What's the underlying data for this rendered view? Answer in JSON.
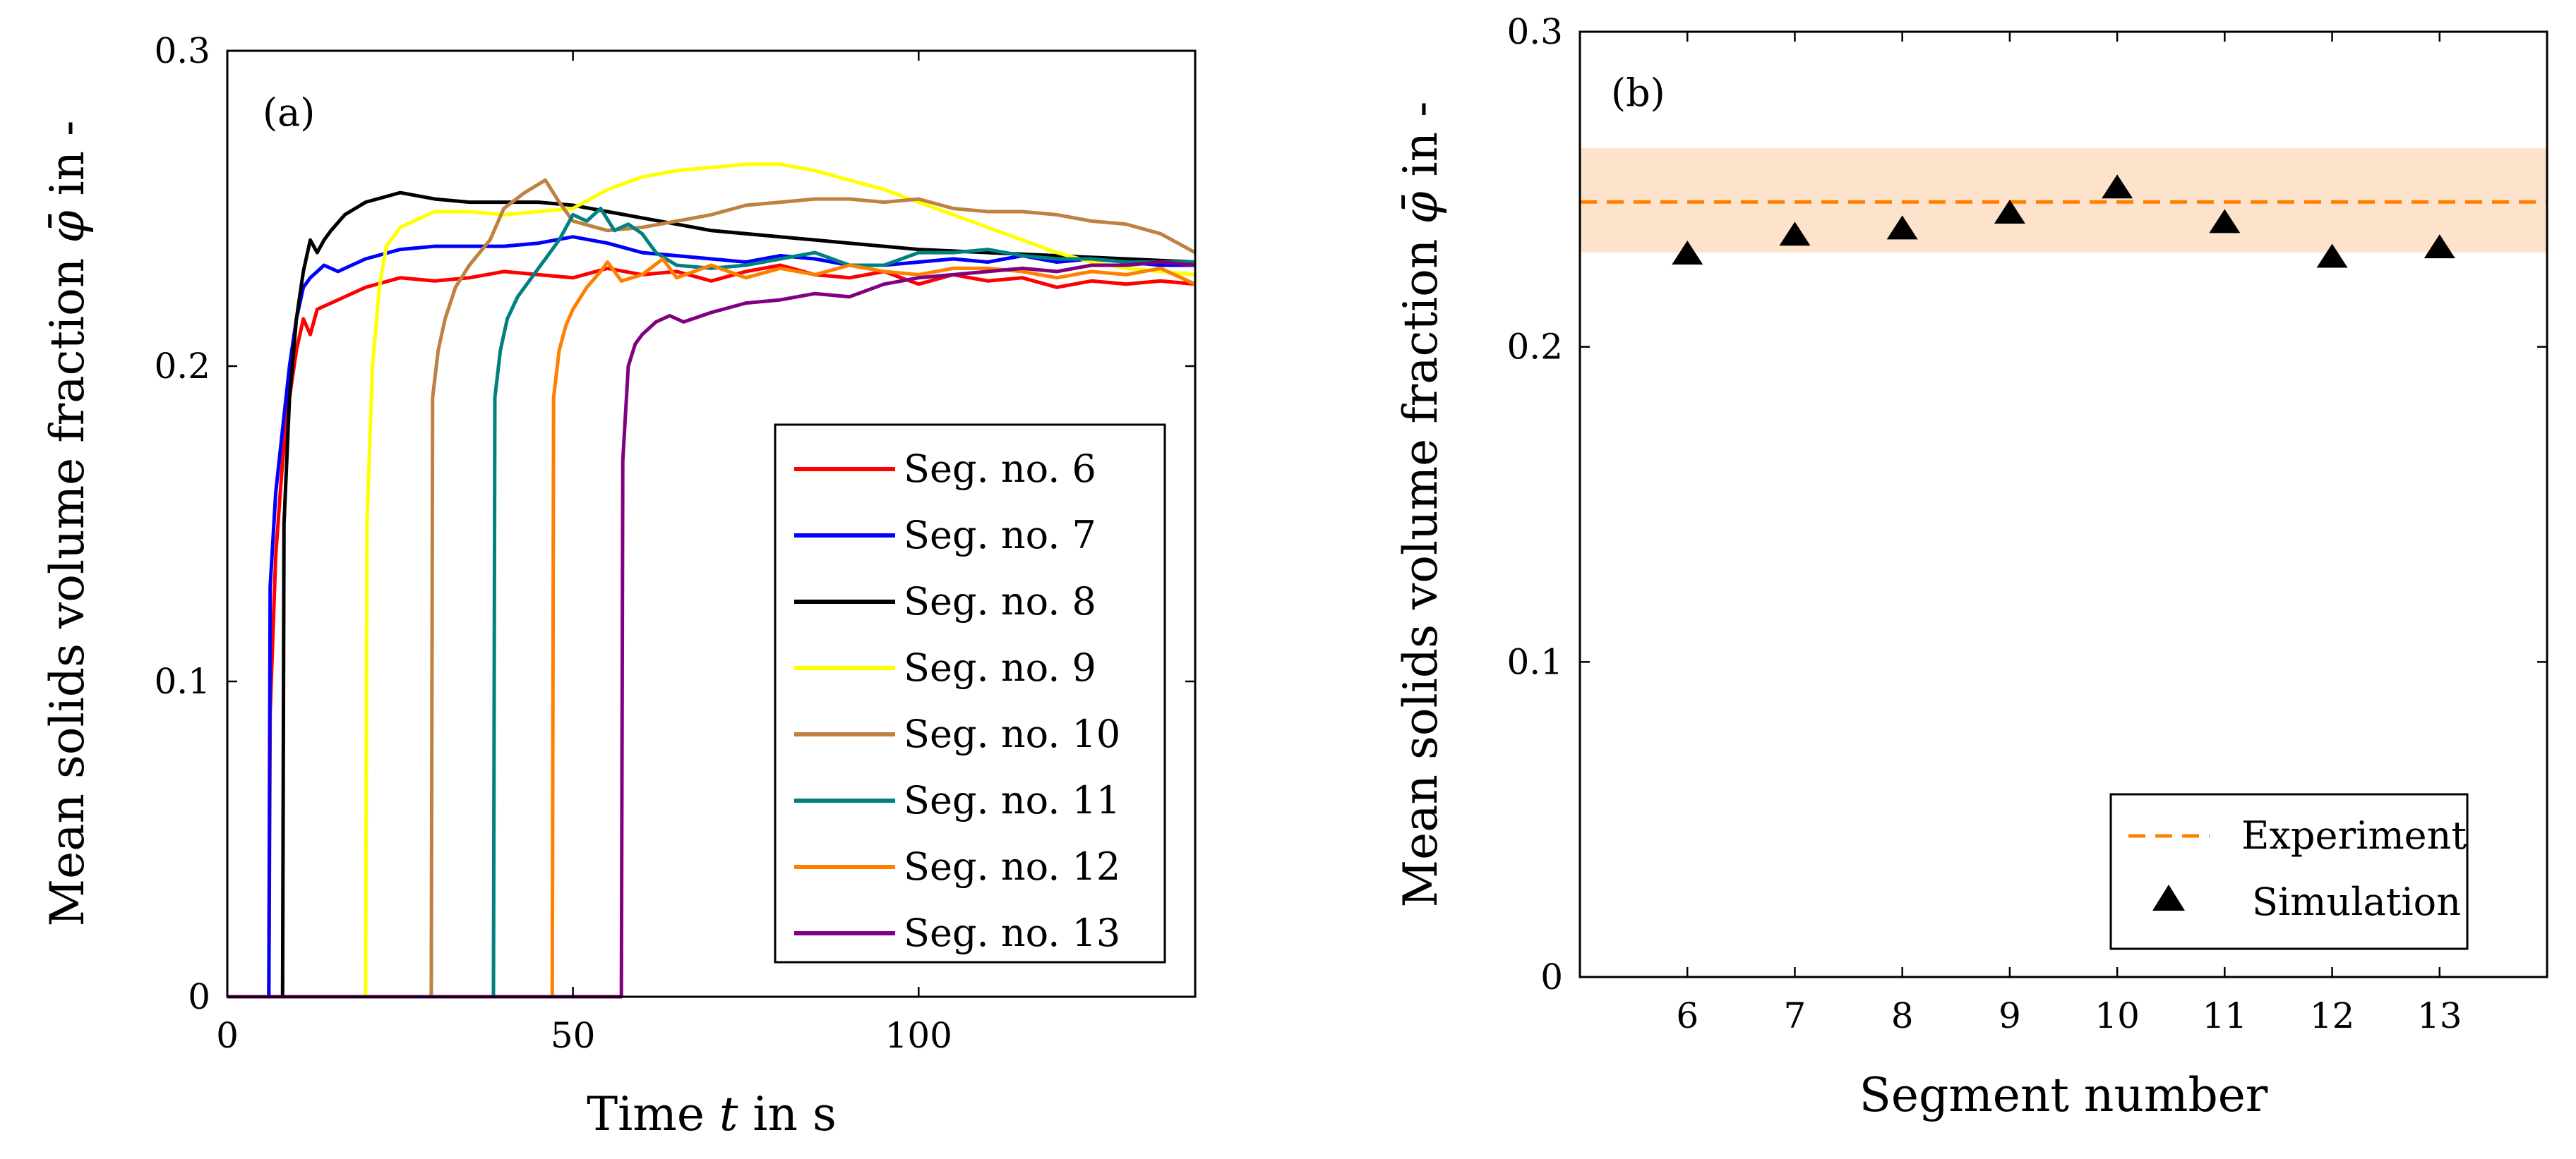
{
  "chart_data": [
    {
      "type": "line",
      "panel_label": "(a)",
      "xlabel": "Time t in s",
      "xlabel_parts": [
        "Time ",
        "t",
        " in s"
      ],
      "ylabel": "Mean solids volume fraction φ̄ in -",
      "ylabel_parts": [
        "Mean solids volume fraction ",
        "φ̄",
        " in -"
      ],
      "xlim": [
        0,
        140
      ],
      "ylim": [
        0,
        0.3
      ],
      "xticks": [
        0,
        50,
        100
      ],
      "xtick_labels": [
        "0",
        "50",
        "100"
      ],
      "yticks": [
        0,
        0.1,
        0.2,
        0.3
      ],
      "ytick_labels": [
        "0",
        "0.1",
        "0.2",
        "0.3"
      ],
      "grid": false,
      "legend_position": "bottom-right",
      "series": [
        {
          "name": "Seg. no. 6",
          "color": "#ff0000",
          "x": [
            0,
            6,
            6.2,
            7,
            8,
            9,
            10,
            11,
            12,
            13,
            15,
            20,
            25,
            30,
            35,
            40,
            45,
            50,
            55,
            60,
            65,
            70,
            75,
            80,
            85,
            90,
            95,
            100,
            105,
            110,
            115,
            120,
            125,
            130,
            135,
            140
          ],
          "y": [
            0,
            0,
            0.09,
            0.14,
            0.17,
            0.19,
            0.205,
            0.215,
            0.21,
            0.218,
            0.22,
            0.225,
            0.228,
            0.227,
            0.228,
            0.23,
            0.229,
            0.228,
            0.231,
            0.229,
            0.23,
            0.227,
            0.23,
            0.232,
            0.229,
            0.228,
            0.23,
            0.226,
            0.229,
            0.227,
            0.228,
            0.225,
            0.227,
            0.226,
            0.227,
            0.226
          ]
        },
        {
          "name": "Seg. no. 7",
          "color": "#0000ff",
          "x": [
            0,
            6,
            6.2,
            7,
            8,
            9,
            10,
            11,
            12,
            14,
            16,
            20,
            25,
            30,
            35,
            40,
            45,
            50,
            55,
            60,
            65,
            70,
            75,
            80,
            85,
            90,
            95,
            100,
            105,
            110,
            115,
            120,
            125,
            130,
            135,
            140
          ],
          "y": [
            0,
            0,
            0.13,
            0.16,
            0.18,
            0.2,
            0.215,
            0.225,
            0.228,
            0.232,
            0.23,
            0.234,
            0.237,
            0.238,
            0.238,
            0.238,
            0.239,
            0.241,
            0.239,
            0.236,
            0.235,
            0.234,
            0.233,
            0.235,
            0.234,
            0.232,
            0.232,
            0.233,
            0.234,
            0.233,
            0.235,
            0.233,
            0.234,
            0.233,
            0.232,
            0.232
          ]
        },
        {
          "name": "Seg. no. 8",
          "color": "#000000",
          "x": [
            0,
            8,
            8.2,
            9,
            10,
            11,
            12,
            13,
            14,
            15,
            17,
            20,
            25,
            30,
            35,
            40,
            45,
            50,
            55,
            60,
            65,
            70,
            80,
            90,
            100,
            110,
            120,
            130,
            140
          ],
          "y": [
            0,
            0,
            0.15,
            0.19,
            0.215,
            0.23,
            0.24,
            0.236,
            0.24,
            0.243,
            0.248,
            0.252,
            0.255,
            0.253,
            0.252,
            0.252,
            0.252,
            0.251,
            0.249,
            0.247,
            0.245,
            0.243,
            0.241,
            0.239,
            0.237,
            0.236,
            0.235,
            0.234,
            0.233
          ]
        },
        {
          "name": "Seg. no. 9",
          "color": "#ffff00",
          "x": [
            0,
            20,
            20.2,
            21,
            22,
            23,
            25,
            27,
            30,
            35,
            40,
            45,
            50,
            55,
            60,
            65,
            70,
            75,
            80,
            85,
            90,
            95,
            100,
            105,
            110,
            115,
            120,
            125,
            130,
            135,
            140
          ],
          "y": [
            0,
            0,
            0.15,
            0.2,
            0.225,
            0.238,
            0.244,
            0.246,
            0.249,
            0.249,
            0.248,
            0.249,
            0.25,
            0.256,
            0.26,
            0.262,
            0.263,
            0.264,
            0.264,
            0.262,
            0.259,
            0.256,
            0.252,
            0.248,
            0.244,
            0.24,
            0.236,
            0.233,
            0.231,
            0.23,
            0.229
          ]
        },
        {
          "name": "Seg. no. 10",
          "color": "#bf8040",
          "x": [
            0,
            29.5,
            29.7,
            30.5,
            31.5,
            33,
            35,
            38,
            40,
            43,
            46,
            48,
            50,
            55,
            60,
            65,
            70,
            75,
            80,
            85,
            90,
            95,
            100,
            105,
            110,
            115,
            120,
            125,
            130,
            135,
            140
          ],
          "y": [
            0,
            0,
            0.19,
            0.205,
            0.215,
            0.225,
            0.232,
            0.24,
            0.25,
            0.255,
            0.259,
            0.252,
            0.246,
            0.243,
            0.244,
            0.246,
            0.248,
            0.251,
            0.252,
            0.253,
            0.253,
            0.252,
            0.253,
            0.25,
            0.249,
            0.249,
            0.248,
            0.246,
            0.245,
            0.242,
            0.236
          ]
        },
        {
          "name": "Seg. no. 11",
          "color": "#008080",
          "x": [
            0,
            38.5,
            38.7,
            39.5,
            40.5,
            42,
            44,
            46,
            48,
            50,
            52,
            54,
            56,
            58,
            60,
            62,
            65,
            70,
            75,
            80,
            85,
            90,
            95,
            100,
            105,
            110,
            115,
            120,
            125,
            130,
            135,
            140
          ],
          "y": [
            0,
            0,
            0.19,
            0.205,
            0.215,
            0.222,
            0.228,
            0.234,
            0.24,
            0.248,
            0.246,
            0.25,
            0.243,
            0.245,
            0.242,
            0.236,
            0.232,
            0.231,
            0.232,
            0.234,
            0.236,
            0.232,
            0.232,
            0.236,
            0.236,
            0.237,
            0.235,
            0.234,
            0.234,
            0.233,
            0.233,
            0.233
          ]
        },
        {
          "name": "Seg. no. 12",
          "color": "#ff8000",
          "x": [
            0,
            47,
            47.2,
            48,
            49,
            50,
            52,
            54,
            55,
            57,
            60,
            63,
            65,
            70,
            75,
            80,
            85,
            90,
            95,
            100,
            105,
            110,
            115,
            120,
            125,
            130,
            135,
            140
          ],
          "y": [
            0,
            0,
            0.19,
            0.205,
            0.213,
            0.218,
            0.225,
            0.23,
            0.233,
            0.227,
            0.229,
            0.234,
            0.228,
            0.232,
            0.228,
            0.231,
            0.229,
            0.232,
            0.23,
            0.229,
            0.231,
            0.231,
            0.23,
            0.228,
            0.23,
            0.229,
            0.231,
            0.226
          ]
        },
        {
          "name": "Seg. no. 13",
          "color": "#800080",
          "x": [
            0,
            57,
            57.2,
            58,
            59,
            60,
            62,
            64,
            66,
            70,
            75,
            80,
            85,
            90,
            95,
            100,
            105,
            110,
            115,
            120,
            125,
            130,
            135,
            140
          ],
          "y": [
            0,
            0,
            0.17,
            0.2,
            0.207,
            0.21,
            0.214,
            0.216,
            0.214,
            0.217,
            0.22,
            0.221,
            0.223,
            0.222,
            0.226,
            0.228,
            0.229,
            0.23,
            0.231,
            0.23,
            0.232,
            0.232,
            0.233,
            0.232
          ]
        }
      ]
    },
    {
      "type": "scatter",
      "panel_label": "(b)",
      "xlabel": "Segment number",
      "ylabel": "Mean solids volume fraction φ̄ in -",
      "ylabel_parts": [
        "Mean solids volume fraction ",
        "φ̄",
        " in -"
      ],
      "xlim": [
        5,
        14
      ],
      "ylim": [
        0,
        0.3
      ],
      "xticks": [
        6,
        7,
        8,
        9,
        10,
        11,
        12,
        13
      ],
      "xtick_labels": [
        "6",
        "7",
        "8",
        "9",
        "10",
        "11",
        "12",
        "13"
      ],
      "yticks": [
        0,
        0.1,
        0.2,
        0.3
      ],
      "ytick_labels": [
        "0",
        "0.1",
        "0.2",
        "0.3"
      ],
      "grid": false,
      "legend_position": "bottom-right",
      "experiment": {
        "name": "Experiment",
        "mean": 0.246,
        "band": [
          0.23,
          0.263
        ],
        "color": "#ff8000",
        "band_color": "#fde3cc"
      },
      "simulation": {
        "name": "Simulation",
        "marker": "triangle",
        "color": "#000000",
        "x": [
          6,
          7,
          8,
          9,
          10,
          11,
          12,
          13
        ],
        "y": [
          0.229,
          0.235,
          0.237,
          0.242,
          0.25,
          0.239,
          0.228,
          0.231
        ]
      }
    }
  ]
}
